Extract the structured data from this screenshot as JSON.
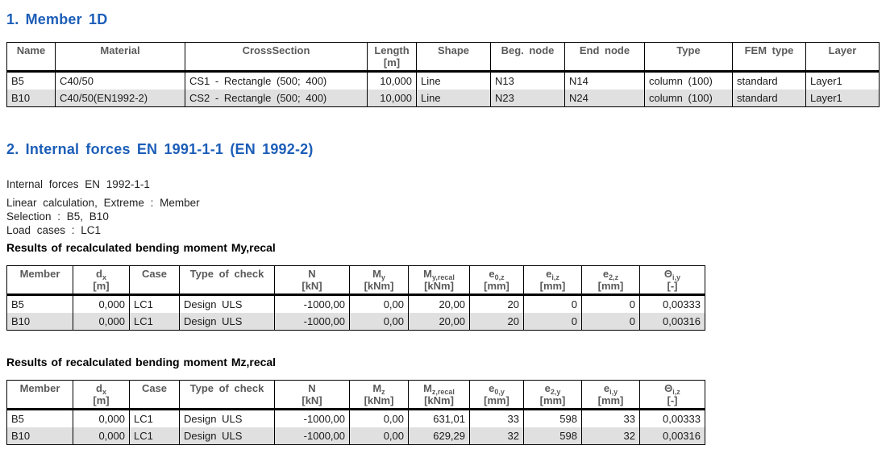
{
  "colors": {
    "heading_blue": "#1c5eb8",
    "table_header_text": "#5a5a5a",
    "row_alternate": "#e0e0e0",
    "table_border": "#000000"
  },
  "section1": {
    "title": "1. Member 1D"
  },
  "section2": {
    "title": "2. Internal forces EN 1991-1-1 (EN 1992-2)",
    "info_line1": "Internal forces EN 1992-1-1",
    "info_line2": "Linear calculation, Extreme : Member",
    "info_line3": "Selection : B5, B10",
    "info_line4": "Load cases : LC1",
    "subtitle_my": "Results of recalculated bending moment My,recal",
    "subtitle_mz": "Results of recalculated bending moment Mz,recal"
  },
  "tables": {
    "members": {
      "columns": [
        {
          "label": "Name",
          "sub": "",
          "unit": "",
          "align": "left"
        },
        {
          "label": "Material",
          "sub": "",
          "unit": "",
          "align": "left"
        },
        {
          "label": "CrossSection",
          "sub": "",
          "unit": "",
          "align": "left"
        },
        {
          "label": "Length",
          "sub": "",
          "unit": "[m]",
          "align": "right"
        },
        {
          "label": "Shape",
          "sub": "",
          "unit": "",
          "align": "left"
        },
        {
          "label": "Beg. node",
          "sub": "",
          "unit": "",
          "align": "left"
        },
        {
          "label": "End node",
          "sub": "",
          "unit": "",
          "align": "left"
        },
        {
          "label": "Type",
          "sub": "",
          "unit": "",
          "align": "left"
        },
        {
          "label": "FEM type",
          "sub": "",
          "unit": "",
          "align": "left"
        },
        {
          "label": "Layer",
          "sub": "",
          "unit": "",
          "align": "left"
        }
      ],
      "rows": [
        [
          "B5",
          "C40/50",
          "CS1 - Rectangle (500; 400)",
          "10,000",
          "Line",
          "N13",
          "N14",
          "column (100)",
          "standard",
          "Layer1"
        ],
        [
          "B10",
          "C40/50(EN1992-2)",
          "CS2 - Rectangle (500; 400)",
          "10,000",
          "Line",
          "N23",
          "N24",
          "column (100)",
          "standard",
          "Layer1"
        ]
      ]
    },
    "my": {
      "columns": [
        {
          "label": "Member",
          "sub": "",
          "unit": "",
          "align": "left"
        },
        {
          "label": "d",
          "sub": "x",
          "unit": "[m]",
          "align": "right"
        },
        {
          "label": "Case",
          "sub": "",
          "unit": "",
          "align": "left"
        },
        {
          "label": "Type of check",
          "sub": "",
          "unit": "",
          "align": "left"
        },
        {
          "label": "N",
          "sub": "",
          "unit": "[kN]",
          "align": "right"
        },
        {
          "label": "M",
          "sub": "y",
          "unit": "[kNm]",
          "align": "right"
        },
        {
          "label": "M",
          "sub": "y,recal",
          "unit": "[kNm]",
          "align": "right"
        },
        {
          "label": "e",
          "sub": "0,z",
          "unit": "[mm]",
          "align": "right"
        },
        {
          "label": "e",
          "sub": "i,z",
          "unit": "[mm]",
          "align": "right"
        },
        {
          "label": "e",
          "sub": "2,z",
          "unit": "[mm]",
          "align": "right"
        },
        {
          "label": "Θ",
          "sub": "i,y",
          "unit": "[-]",
          "align": "right"
        }
      ],
      "rows": [
        [
          "B5",
          "0,000",
          "LC1",
          "Design ULS",
          "-1000,00",
          "0,00",
          "20,00",
          "20",
          "0",
          "0",
          "0,00333"
        ],
        [
          "B10",
          "0,000",
          "LC1",
          "Design ULS",
          "-1000,00",
          "0,00",
          "20,00",
          "20",
          "0",
          "0",
          "0,00316"
        ]
      ]
    },
    "mz": {
      "columns": [
        {
          "label": "Member",
          "sub": "",
          "unit": "",
          "align": "left"
        },
        {
          "label": "d",
          "sub": "x",
          "unit": "[m]",
          "align": "right"
        },
        {
          "label": "Case",
          "sub": "",
          "unit": "",
          "align": "left"
        },
        {
          "label": "Type of check",
          "sub": "",
          "unit": "",
          "align": "left"
        },
        {
          "label": "N",
          "sub": "",
          "unit": "[kN]",
          "align": "right"
        },
        {
          "label": "M",
          "sub": "z",
          "unit": "[kNm]",
          "align": "right"
        },
        {
          "label": "M",
          "sub": "z,recal",
          "unit": "[kNm]",
          "align": "right"
        },
        {
          "label": "e",
          "sub": "0,y",
          "unit": "[mm]",
          "align": "right"
        },
        {
          "label": "e",
          "sub": "2,y",
          "unit": "[mm]",
          "align": "right"
        },
        {
          "label": "e",
          "sub": "i,y",
          "unit": "[mm]",
          "align": "right"
        },
        {
          "label": "Θ",
          "sub": "i,z",
          "unit": "[-]",
          "align": "right"
        }
      ],
      "rows": [
        [
          "B5",
          "0,000",
          "LC1",
          "Design ULS",
          "-1000,00",
          "0,00",
          "631,01",
          "33",
          "598",
          "33",
          "0,00333"
        ],
        [
          "B10",
          "0,000",
          "LC1",
          "Design ULS",
          "-1000,00",
          "0,00",
          "629,29",
          "32",
          "598",
          "32",
          "0,00316"
        ]
      ]
    }
  }
}
